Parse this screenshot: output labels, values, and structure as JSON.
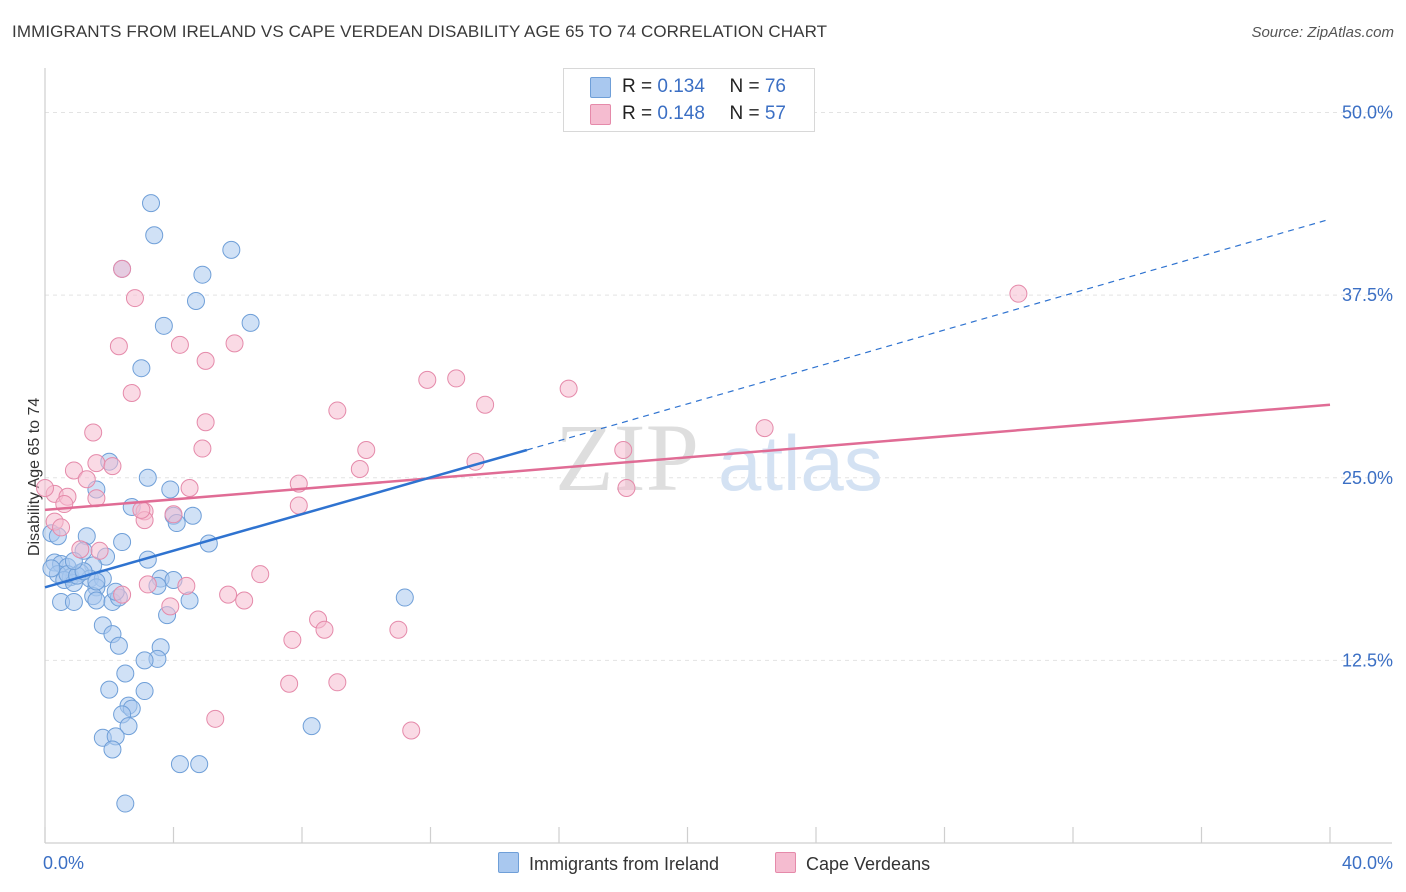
{
  "title": "IMMIGRANTS FROM IRELAND VS CAPE VERDEAN DISABILITY AGE 65 TO 74 CORRELATION CHART",
  "source": "Source: ZipAtlas.com",
  "watermark": {
    "zip": "ZIP",
    "atlas": "atlas"
  },
  "legend": [
    {
      "r_label": "R = ",
      "r_value": "0.134",
      "n_label": "N = ",
      "n_value": "76",
      "fill": "#a9c8ef",
      "stroke": "#6f9fd8"
    },
    {
      "r_label": "R = ",
      "r_value": "0.148",
      "n_label": "N = ",
      "n_value": "57",
      "fill": "#f5bcd0",
      "stroke": "#e58aaa"
    }
  ],
  "bottom_legend": [
    "Immigrants from Ireland",
    "Cape Verdeans"
  ],
  "colors": {
    "blue_point": "#a9c8ef",
    "blue_stroke": "#6f9fd8",
    "blue_line": "#2f73d0",
    "pink_point": "#f5bcd0",
    "pink_stroke": "#e58aaa",
    "pink_line": "#e06c95",
    "tick_label": "#3b6fc4",
    "grid": "#e3e3e3"
  },
  "chart_data": {
    "type": "scatter",
    "title": "IMMIGRANTS FROM IRELAND VS CAPE VERDEAN DISABILITY AGE 65 TO 74 CORRELATION CHART",
    "xlabel": "",
    "ylabel": "Disability Age 65 to 74",
    "xlim": [
      0,
      40
    ],
    "ylim": [
      0,
      52.5
    ],
    "x_tick_labels": [
      "0.0%",
      "40.0%"
    ],
    "y_ticks": [
      12.5,
      25.0,
      37.5,
      50.0
    ],
    "y_tick_labels": [
      "12.5%",
      "25.0%",
      "37.5%",
      "50.0%"
    ],
    "grid": true,
    "series": [
      {
        "name": "Immigrants from Ireland",
        "points": [
          [
            3.3,
            43.8
          ],
          [
            3.4,
            41.6
          ],
          [
            5.8,
            40.6
          ],
          [
            4.9,
            38.9
          ],
          [
            2.4,
            39.3
          ],
          [
            4.7,
            37.1
          ],
          [
            6.4,
            35.6
          ],
          [
            3.7,
            35.4
          ],
          [
            3.0,
            32.5
          ],
          [
            2.0,
            26.1
          ],
          [
            3.2,
            25.0
          ],
          [
            1.6,
            24.2
          ],
          [
            3.9,
            24.2
          ],
          [
            2.7,
            23.0
          ],
          [
            4.0,
            22.4
          ],
          [
            4.6,
            22.4
          ],
          [
            4.1,
            21.9
          ],
          [
            0.2,
            21.2
          ],
          [
            0.4,
            21.0
          ],
          [
            1.3,
            21.0
          ],
          [
            2.4,
            20.6
          ],
          [
            5.1,
            20.5
          ],
          [
            1.2,
            20.0
          ],
          [
            1.9,
            19.6
          ],
          [
            0.3,
            19.2
          ],
          [
            0.5,
            19.1
          ],
          [
            0.7,
            18.9
          ],
          [
            1.5,
            19.0
          ],
          [
            3.2,
            19.4
          ],
          [
            0.4,
            18.4
          ],
          [
            0.8,
            18.2
          ],
          [
            1.1,
            18.5
          ],
          [
            0.6,
            18.0
          ],
          [
            1.4,
            18.1
          ],
          [
            1.8,
            18.1
          ],
          [
            0.9,
            17.8
          ],
          [
            3.6,
            18.1
          ],
          [
            4.0,
            18.0
          ],
          [
            1.6,
            17.5
          ],
          [
            3.5,
            17.6
          ],
          [
            1.5,
            16.9
          ],
          [
            0.5,
            16.5
          ],
          [
            0.9,
            16.5
          ],
          [
            1.6,
            16.6
          ],
          [
            2.1,
            16.5
          ],
          [
            2.3,
            16.8
          ],
          [
            11.2,
            16.8
          ],
          [
            3.8,
            15.6
          ],
          [
            1.8,
            14.9
          ],
          [
            2.1,
            14.3
          ],
          [
            2.3,
            13.5
          ],
          [
            3.6,
            13.4
          ],
          [
            3.5,
            12.6
          ],
          [
            3.1,
            12.5
          ],
          [
            2.5,
            11.6
          ],
          [
            2.0,
            10.5
          ],
          [
            3.1,
            10.4
          ],
          [
            2.6,
            9.4
          ],
          [
            2.7,
            9.2
          ],
          [
            2.4,
            8.8
          ],
          [
            2.6,
            8.0
          ],
          [
            8.3,
            8.0
          ],
          [
            1.8,
            7.2
          ],
          [
            2.2,
            7.3
          ],
          [
            2.1,
            6.4
          ],
          [
            4.2,
            5.4
          ],
          [
            4.8,
            5.4
          ],
          [
            2.5,
            2.7
          ],
          [
            0.7,
            18.4
          ],
          [
            1.0,
            18.3
          ],
          [
            1.2,
            18.6
          ],
          [
            0.2,
            18.8
          ],
          [
            0.9,
            19.3
          ],
          [
            1.6,
            17.9
          ],
          [
            2.2,
            17.2
          ],
          [
            4.5,
            16.6
          ]
        ]
      },
      {
        "name": "Cape Verdeans",
        "points": [
          [
            2.4,
            39.3
          ],
          [
            2.8,
            37.3
          ],
          [
            30.3,
            37.6
          ],
          [
            2.3,
            34.0
          ],
          [
            4.2,
            34.1
          ],
          [
            5.9,
            34.2
          ],
          [
            5.0,
            33.0
          ],
          [
            11.9,
            31.7
          ],
          [
            12.8,
            31.8
          ],
          [
            16.3,
            31.1
          ],
          [
            2.7,
            30.8
          ],
          [
            13.7,
            30.0
          ],
          [
            9.1,
            29.6
          ],
          [
            5.0,
            28.8
          ],
          [
            22.4,
            28.4
          ],
          [
            1.5,
            28.1
          ],
          [
            4.9,
            27.0
          ],
          [
            10.0,
            26.9
          ],
          [
            18.0,
            26.9
          ],
          [
            1.6,
            26.0
          ],
          [
            2.1,
            25.8
          ],
          [
            13.4,
            26.1
          ],
          [
            9.8,
            25.6
          ],
          [
            0.9,
            25.5
          ],
          [
            1.3,
            24.9
          ],
          [
            7.9,
            24.6
          ],
          [
            4.5,
            24.3
          ],
          [
            18.1,
            24.3
          ],
          [
            0.3,
            23.9
          ],
          [
            0.7,
            23.7
          ],
          [
            1.6,
            23.6
          ],
          [
            0.6,
            23.2
          ],
          [
            7.9,
            23.1
          ],
          [
            3.1,
            22.7
          ],
          [
            4.0,
            22.5
          ],
          [
            0.3,
            22.0
          ],
          [
            3.1,
            22.1
          ],
          [
            0.5,
            21.6
          ],
          [
            1.1,
            20.1
          ],
          [
            1.7,
            20.0
          ],
          [
            6.7,
            18.4
          ],
          [
            3.2,
            17.7
          ],
          [
            4.4,
            17.6
          ],
          [
            2.4,
            17.0
          ],
          [
            5.7,
            17.0
          ],
          [
            6.2,
            16.6
          ],
          [
            3.9,
            16.2
          ],
          [
            8.5,
            15.3
          ],
          [
            8.7,
            14.6
          ],
          [
            11.0,
            14.6
          ],
          [
            7.7,
            13.9
          ],
          [
            7.6,
            10.9
          ],
          [
            9.1,
            11.0
          ],
          [
            5.3,
            8.5
          ],
          [
            11.4,
            7.7
          ],
          [
            0.0,
            24.3
          ],
          [
            3.0,
            22.8
          ]
        ]
      }
    ],
    "trend_lines": [
      {
        "series": "Immigrants from Ireland",
        "solid": [
          [
            0,
            17.5
          ],
          [
            15.0,
            26.9
          ]
        ],
        "dashed": [
          [
            15.0,
            26.9
          ],
          [
            40,
            42.7
          ]
        ]
      },
      {
        "series": "Cape Verdeans",
        "solid": [
          [
            0,
            22.8
          ],
          [
            40,
            30.0
          ]
        ]
      }
    ]
  }
}
